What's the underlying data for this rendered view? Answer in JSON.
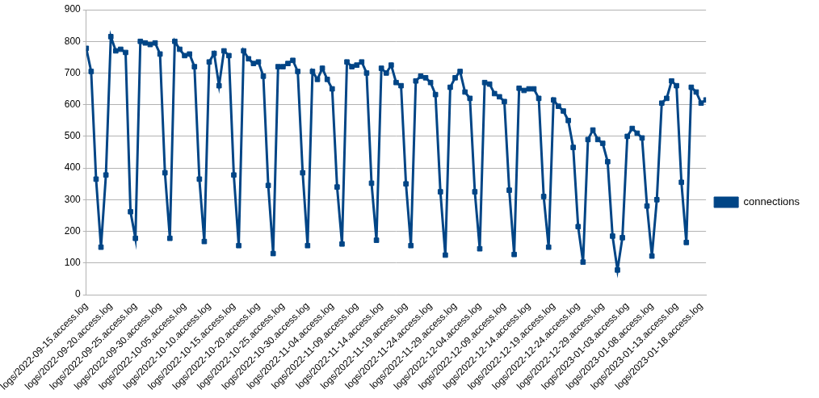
{
  "chart_data": {
    "type": "line",
    "categories": [
      "logs/2022-09-15.access.log",
      null,
      null,
      null,
      null,
      "logs/2022-09-20.access.log",
      null,
      null,
      null,
      null,
      "logs/2022-09-25.access.log",
      null,
      null,
      null,
      null,
      "logs/2022-09-30.access.log",
      null,
      null,
      null,
      null,
      "logs/2022-10-05.access.log",
      null,
      null,
      null,
      null,
      "logs/2022-10-10.access.log",
      null,
      null,
      null,
      null,
      "logs/2022-10-15.access.log",
      null,
      null,
      null,
      null,
      "logs/2022-10-20.access.log",
      null,
      null,
      null,
      null,
      "logs/2022-10-25.access.log",
      null,
      null,
      null,
      null,
      "logs/2022-10-30.access.log",
      null,
      null,
      null,
      null,
      "logs/2022-11-04.access.log",
      null,
      null,
      null,
      null,
      "logs/2022-11-09.access.log",
      null,
      null,
      null,
      null,
      "logs/2022-11-14.access.log",
      null,
      null,
      null,
      null,
      "logs/2022-11-19.access.log",
      null,
      null,
      null,
      null,
      "logs/2022-11-24.access.log",
      null,
      null,
      null,
      null,
      "logs/2022-11-29.access.log",
      null,
      null,
      null,
      null,
      "logs/2022-12-04.access.log",
      null,
      null,
      null,
      null,
      "logs/2022-12-09.access.log",
      null,
      null,
      null,
      null,
      "logs/2022-12-14.access.log",
      null,
      null,
      null,
      null,
      "logs/2022-12-19.access.log",
      null,
      null,
      null,
      null,
      "logs/2022-12-24.access.log",
      null,
      null,
      null,
      null,
      "logs/2022-12-29.access.log",
      null,
      null,
      null,
      null,
      "logs/2023-01-03.access.log",
      null,
      null,
      null,
      null,
      "logs/2023-01-08.access.log",
      null,
      null,
      null,
      null,
      "logs/2023-01-13.access.log",
      null,
      null,
      null,
      null,
      "logs/2023-01-18.access.log",
      null
    ],
    "series": [
      {
        "name": "connections",
        "color": "#004586",
        "marker": "square",
        "line_style": "solid",
        "values": [
          778,
          705,
          365,
          150,
          378,
          815,
          770,
          775,
          765,
          262,
          178,
          800,
          795,
          790,
          795,
          760,
          385,
          178,
          800,
          775,
          755,
          760,
          720,
          365,
          168,
          735,
          762,
          660,
          770,
          755,
          378,
          155,
          770,
          745,
          730,
          735,
          690,
          345,
          130,
          720,
          720,
          730,
          740,
          705,
          385,
          155,
          705,
          680,
          715,
          680,
          650,
          340,
          160,
          735,
          720,
          725,
          735,
          700,
          352,
          172,
          715,
          700,
          725,
          670,
          660,
          350,
          155,
          675,
          690,
          685,
          670,
          632,
          325,
          125,
          655,
          685,
          705,
          640,
          620,
          325,
          145,
          670,
          665,
          635,
          625,
          610,
          330,
          127,
          652,
          645,
          650,
          650,
          620,
          310,
          150,
          615,
          595,
          580,
          550,
          465,
          215,
          103,
          490,
          520,
          490,
          478,
          420,
          185,
          78,
          180,
          500,
          525,
          510,
          495,
          280,
          122,
          300,
          605,
          620,
          675,
          660,
          355,
          165,
          655,
          640,
          605,
          615
        ]
      }
    ],
    "ylim": [
      0,
      900
    ],
    "yticks": [
      0,
      100,
      200,
      300,
      400,
      500,
      600,
      700,
      800,
      900
    ],
    "grid": true,
    "legend": "right"
  }
}
